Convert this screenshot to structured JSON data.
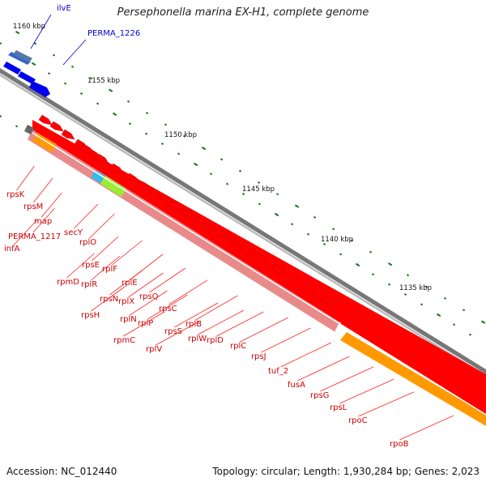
{
  "title": "Persephonella marina EX-H1, complete genome",
  "footer": {
    "accession": "Accession: NC_012440",
    "topology": "Topology: circular; Length: 1,930,284 bp; Genes: 2,023"
  },
  "kbp_labels": [
    "1160 kbp",
    "1155 kbp",
    "1150 kbp",
    "1145 kbp",
    "1140 kbp",
    "1135 kbp"
  ],
  "blue_labels": [
    "ilvE",
    "PERMA_1226"
  ],
  "red_labels": [
    "rpsK",
    "rpsM",
    "map",
    "PERMA_1217",
    "infA",
    "secY",
    "rplO",
    "rpsE",
    "rpmD",
    "rplR",
    "rplF",
    "rplE",
    "rpsN",
    "rpsH",
    "rplX",
    "rpsQ",
    "rplN",
    "rpsC",
    "rplP",
    "rpmC",
    "rplB",
    "rpsS",
    "rplV",
    "rplW",
    "rplD",
    "rplC",
    "rpsJ",
    "tuf_2",
    "fusA",
    "rpsG",
    "rpsL",
    "rpoC",
    "rpoB"
  ],
  "colors": {
    "backbone": "#7f7f7f",
    "red": "#ff0000",
    "dark_red": "#c00000",
    "pink": "#e88a8a",
    "orange": "#ff9900",
    "blue": "#0000ee",
    "lime": "#99ee33",
    "cyan": "#33bbee",
    "green_tick": "#117711",
    "label_red": "#cc0000",
    "label_blue": "#0000cc"
  }
}
